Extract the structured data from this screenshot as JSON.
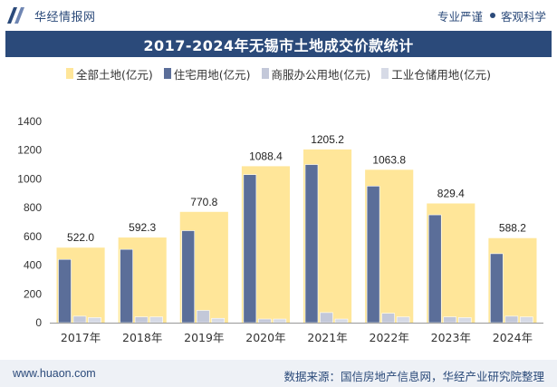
{
  "header": {
    "brand": "华经情报网",
    "tagline_left": "专业严谨",
    "tagline_right": "客观科学"
  },
  "footer": {
    "url": "www.huaon.com",
    "source": "数据来源：国信房地产信息网，华经产业研究院整理"
  },
  "colors": {
    "total": "#ffe699",
    "residential": "#5b6e99",
    "commercial": "#c3c8d9",
    "industrial": "#d6dae6",
    "header_bar": "#2b4a7a"
  },
  "chart_data": {
    "type": "bar",
    "title": "2017-2024年无锡市土地成交价款统计",
    "categories": [
      "2017年",
      "2018年",
      "2019年",
      "2020年",
      "2021年",
      "2022年",
      "2023年",
      "2024年"
    ],
    "series": [
      {
        "name": "全部土地(亿元)",
        "values": [
          522.0,
          592.3,
          770.8,
          1088.4,
          1205.2,
          1063.8,
          829.4,
          588.2
        ]
      },
      {
        "name": "住宅用地(亿元)",
        "values": [
          440,
          510,
          640,
          1030,
          1100,
          950,
          750,
          480
        ]
      },
      {
        "name": "商服办公用地(亿元)",
        "values": [
          45,
          40,
          85,
          25,
          70,
          65,
          40,
          45
        ]
      },
      {
        "name": "工业仓储用地(亿元)",
        "values": [
          35,
          40,
          30,
          25,
          25,
          40,
          35,
          40
        ]
      }
    ],
    "total_labels": [
      "522.0",
      "592.3",
      "770.8",
      "1088.4",
      "1205.2",
      "1063.8",
      "829.4",
      "588.2"
    ],
    "y_ticks": [
      "0",
      "200",
      "400",
      "600",
      "800",
      "1000",
      "1200",
      "1400"
    ],
    "ylim": [
      0,
      1400
    ],
    "legend_position": "top",
    "grid": false
  }
}
